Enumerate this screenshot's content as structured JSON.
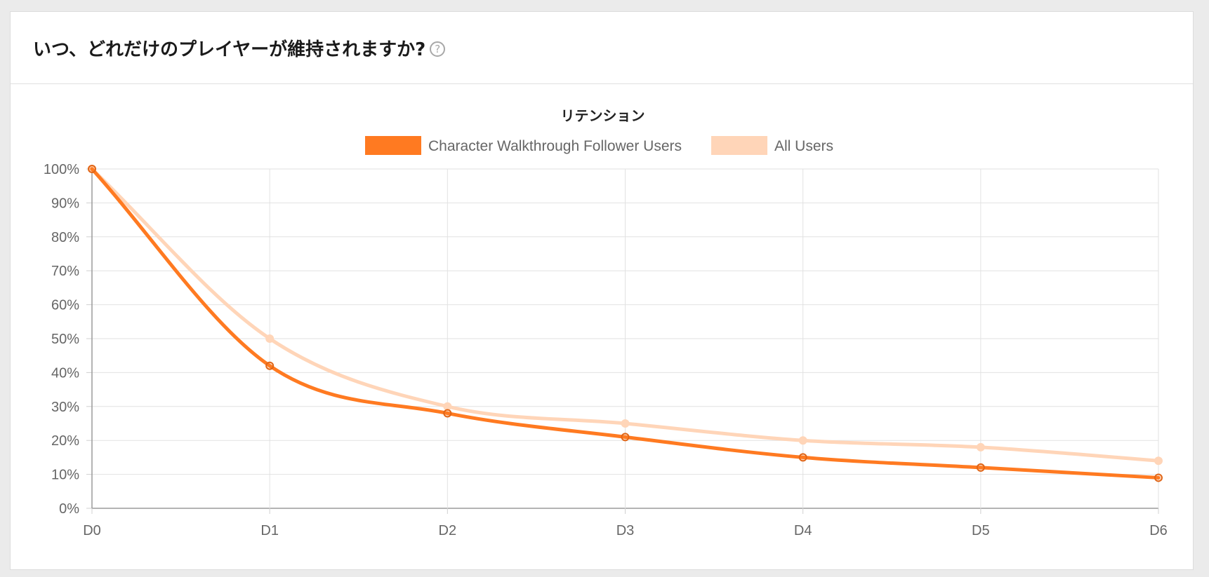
{
  "header": {
    "title": "いつ、どれだけのプレイヤーが維持されますか?",
    "help_icon_glyph": "?",
    "help_icon": "help-circle-icon"
  },
  "chart_data": {
    "type": "line",
    "title": "リテンション",
    "categories": [
      "D0",
      "D1",
      "D2",
      "D3",
      "D4",
      "D5",
      "D6"
    ],
    "y_ticks": [
      "0%",
      "10%",
      "20%",
      "30%",
      "40%",
      "50%",
      "60%",
      "70%",
      "80%",
      "90%",
      "100%"
    ],
    "ylim": [
      0,
      100
    ],
    "grid": true,
    "legend_position": "top",
    "series": [
      {
        "name": "Character Walkthrough Follower Users",
        "color": "#ff7a21",
        "values": [
          100,
          42,
          28,
          21,
          15,
          12,
          9
        ]
      },
      {
        "name": "All Users",
        "color": "#ffd5b8",
        "values": [
          100,
          50,
          30,
          25,
          20,
          18,
          14
        ]
      }
    ]
  }
}
